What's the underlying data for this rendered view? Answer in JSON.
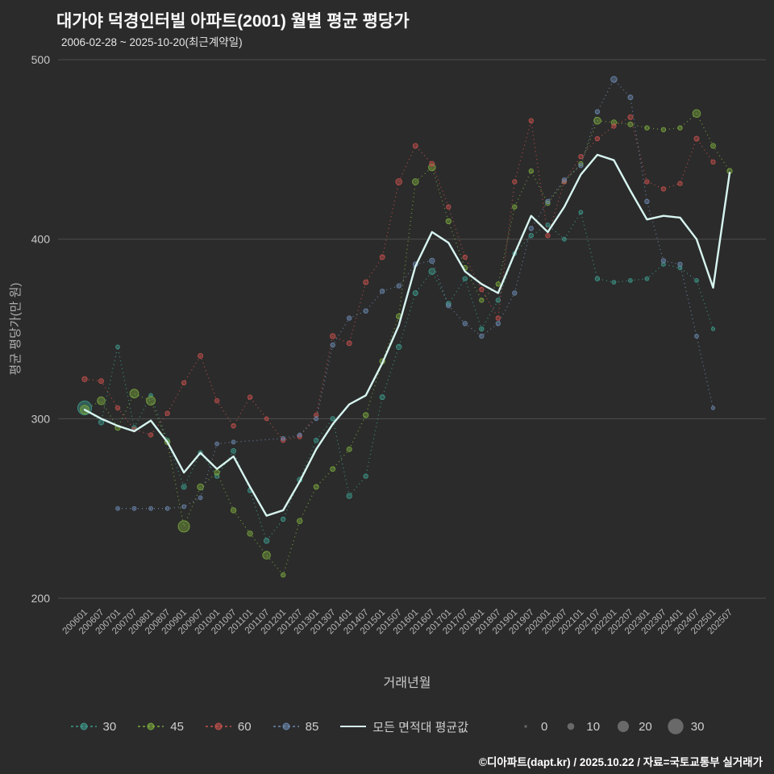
{
  "title": "대가야 덕경인터빌 아파트(2001) 월별 평균 평당가",
  "subtitle": "2006-02-28 ~ 2025-10-20(최근계약일)",
  "footer": "©디아파트(dapt.kr) / 2025.10.22 / 자료=국토교통부 실거래가",
  "colors": {
    "background": "#2b2b2b",
    "gridline": "#4d4d4d",
    "tick_text": "#c9c9c9",
    "axis_title": "#b0b0b0",
    "size_legend_dot": "#7f7f7f"
  },
  "chart_data": {
    "type": "scatter",
    "title": "대가야 덕경인터빌 아파트(2001) 월별 평균 평당가",
    "xlabel": "거래년월",
    "ylabel": "평균 평당가(만 원)",
    "ylim": [
      200,
      500
    ],
    "yticks": [
      200,
      300,
      400,
      500
    ],
    "grid": "horizontal-only",
    "legend_position": "bottom",
    "x_ticklabels": [
      "200601",
      "200607",
      "200701",
      "200707",
      "200801",
      "200807",
      "200901",
      "200907",
      "201001",
      "201007",
      "201101",
      "201107",
      "201201",
      "201207",
      "201301",
      "201307",
      "201401",
      "201407",
      "201501",
      "201507",
      "201601",
      "201607",
      "201701",
      "201707",
      "201801",
      "201807",
      "201901",
      "201907",
      "202001",
      "202007",
      "202101",
      "202107",
      "202201",
      "202207",
      "202301",
      "202307",
      "202401",
      "202407",
      "202501",
      "202507"
    ],
    "point_format": "[x_tick_index, avg_price_per_pyeong, transaction_count]",
    "series": [
      {
        "name": "30",
        "color": "#3d9a8b",
        "kind": "scatter",
        "points": [
          [
            0,
            306,
            26
          ],
          [
            1,
            298,
            6
          ],
          [
            2,
            340,
            3
          ],
          [
            3,
            295,
            4
          ],
          [
            4,
            313,
            3
          ],
          [
            5,
            288,
            4
          ],
          [
            6,
            262,
            5
          ],
          [
            7,
            281,
            4
          ],
          [
            8,
            268,
            4
          ],
          [
            9,
            282,
            5
          ],
          [
            10,
            260,
            4
          ],
          [
            11,
            232,
            6
          ],
          [
            12,
            244,
            4
          ],
          [
            13,
            266,
            5
          ],
          [
            14,
            288,
            4
          ],
          [
            15,
            300,
            4
          ],
          [
            16,
            257,
            6
          ],
          [
            17,
            268,
            4
          ],
          [
            18,
            312,
            5
          ],
          [
            19,
            340,
            6
          ],
          [
            20,
            370,
            5
          ],
          [
            21,
            382,
            8
          ],
          [
            22,
            364,
            5
          ],
          [
            23,
            378,
            4
          ],
          [
            24,
            350,
            4
          ],
          [
            25,
            366,
            4
          ],
          [
            26,
            392,
            3
          ],
          [
            27,
            402,
            4
          ],
          [
            28,
            408,
            3
          ],
          [
            29,
            400,
            3
          ],
          [
            30,
            415,
            3
          ],
          [
            31,
            378,
            4
          ],
          [
            32,
            376,
            3
          ],
          [
            33,
            377,
            3
          ],
          [
            34,
            378,
            3
          ],
          [
            35,
            386,
            3
          ],
          [
            36,
            384,
            3
          ],
          [
            37,
            377,
            3
          ],
          [
            38,
            350,
            2
          ]
        ]
      },
      {
        "name": "45",
        "color": "#7aa73e",
        "kind": "scatter",
        "points": [
          [
            0,
            305,
            14
          ],
          [
            1,
            310,
            12
          ],
          [
            2,
            295,
            6
          ],
          [
            3,
            314,
            14
          ],
          [
            4,
            310,
            14
          ],
          [
            5,
            287,
            6
          ],
          [
            6,
            240,
            20
          ],
          [
            7,
            262,
            8
          ],
          [
            8,
            270,
            6
          ],
          [
            9,
            249,
            6
          ],
          [
            10,
            236,
            6
          ],
          [
            11,
            224,
            12
          ],
          [
            12,
            213,
            4
          ],
          [
            13,
            243,
            6
          ],
          [
            14,
            262,
            5
          ],
          [
            15,
            272,
            5
          ],
          [
            16,
            283,
            5
          ],
          [
            17,
            302,
            6
          ],
          [
            18,
            332,
            6
          ],
          [
            19,
            357,
            6
          ],
          [
            20,
            432,
            8
          ],
          [
            21,
            440,
            10
          ],
          [
            22,
            410,
            6
          ],
          [
            23,
            384,
            5
          ],
          [
            24,
            366,
            4
          ],
          [
            25,
            375,
            4
          ],
          [
            26,
            418,
            4
          ],
          [
            27,
            438,
            4
          ],
          [
            28,
            420,
            4
          ],
          [
            29,
            432,
            4
          ],
          [
            30,
            442,
            4
          ],
          [
            31,
            466,
            10
          ],
          [
            32,
            465,
            6
          ],
          [
            33,
            464,
            5
          ],
          [
            34,
            462,
            4
          ],
          [
            35,
            461,
            4
          ],
          [
            36,
            462,
            4
          ],
          [
            37,
            470,
            12
          ],
          [
            38,
            452,
            5
          ],
          [
            39,
            438,
            6
          ]
        ]
      },
      {
        "name": "60",
        "color": "#c4504c",
        "kind": "scatter",
        "points": [
          [
            0,
            322,
            6
          ],
          [
            1,
            321,
            5
          ],
          [
            2,
            306,
            4
          ],
          [
            3,
            294,
            4
          ],
          [
            4,
            291,
            4
          ],
          [
            5,
            303,
            4
          ],
          [
            6,
            320,
            4
          ],
          [
            7,
            335,
            5
          ],
          [
            8,
            310,
            4
          ],
          [
            9,
            296,
            4
          ],
          [
            10,
            312,
            4
          ],
          [
            11,
            300,
            3
          ],
          [
            12,
            288,
            4
          ],
          [
            13,
            290,
            4
          ],
          [
            14,
            302,
            4
          ],
          [
            15,
            346,
            6
          ],
          [
            16,
            342,
            5
          ],
          [
            17,
            376,
            5
          ],
          [
            18,
            390,
            5
          ],
          [
            19,
            432,
            8
          ],
          [
            20,
            452,
            5
          ],
          [
            21,
            442,
            5
          ],
          [
            22,
            418,
            4
          ],
          [
            23,
            390,
            4
          ],
          [
            24,
            372,
            4
          ],
          [
            25,
            356,
            4
          ],
          [
            26,
            432,
            4
          ],
          [
            27,
            466,
            4
          ],
          [
            28,
            402,
            4
          ],
          [
            29,
            432,
            4
          ],
          [
            30,
            446,
            4
          ],
          [
            31,
            456,
            4
          ],
          [
            32,
            463,
            4
          ],
          [
            33,
            468,
            5
          ],
          [
            34,
            432,
            4
          ],
          [
            35,
            428,
            4
          ],
          [
            36,
            431,
            4
          ],
          [
            37,
            456,
            5
          ],
          [
            38,
            443,
            4
          ]
        ]
      },
      {
        "name": "85",
        "color": "#6b87ae",
        "kind": "scatter",
        "points": [
          [
            2,
            250,
            3
          ],
          [
            3,
            250,
            3
          ],
          [
            4,
            250,
            3
          ],
          [
            5,
            250,
            3
          ],
          [
            6,
            251,
            3
          ],
          [
            7,
            256,
            3
          ],
          [
            8,
            286,
            3
          ],
          [
            9,
            287,
            3
          ],
          [
            12,
            289,
            3
          ],
          [
            13,
            291,
            3
          ],
          [
            14,
            300,
            3
          ],
          [
            15,
            341,
            4
          ],
          [
            16,
            356,
            4
          ],
          [
            17,
            360,
            4
          ],
          [
            18,
            371,
            4
          ],
          [
            19,
            374,
            4
          ],
          [
            20,
            386,
            5
          ],
          [
            21,
            388,
            6
          ],
          [
            22,
            363,
            4
          ],
          [
            23,
            353,
            4
          ],
          [
            24,
            346,
            4
          ],
          [
            25,
            353,
            4
          ],
          [
            26,
            370,
            4
          ],
          [
            27,
            406,
            4
          ],
          [
            28,
            421,
            4
          ],
          [
            29,
            433,
            4
          ],
          [
            30,
            441,
            4
          ],
          [
            31,
            471,
            4
          ],
          [
            32,
            489,
            8
          ],
          [
            33,
            479,
            5
          ],
          [
            34,
            421,
            4
          ],
          [
            35,
            388,
            4
          ],
          [
            36,
            386,
            4
          ],
          [
            37,
            346,
            3
          ],
          [
            38,
            306,
            2
          ]
        ]
      },
      {
        "name": "모든 면적대 평균값",
        "color": "#d7f5f0",
        "kind": "line",
        "points": [
          [
            0,
            305
          ],
          [
            1,
            300
          ],
          [
            2,
            296
          ],
          [
            3,
            293
          ],
          [
            4,
            299
          ],
          [
            5,
            287
          ],
          [
            6,
            270
          ],
          [
            7,
            281
          ],
          [
            8,
            272
          ],
          [
            9,
            279
          ],
          [
            10,
            262
          ],
          [
            11,
            246
          ],
          [
            12,
            249
          ],
          [
            13,
            265
          ],
          [
            14,
            283
          ],
          [
            15,
            297
          ],
          [
            16,
            308
          ],
          [
            17,
            313
          ],
          [
            18,
            331
          ],
          [
            19,
            352
          ],
          [
            20,
            385
          ],
          [
            21,
            404
          ],
          [
            22,
            398
          ],
          [
            23,
            382
          ],
          [
            24,
            375
          ],
          [
            25,
            370
          ],
          [
            26,
            392
          ],
          [
            27,
            413
          ],
          [
            28,
            404
          ],
          [
            29,
            418
          ],
          [
            30,
            436
          ],
          [
            31,
            447
          ],
          [
            32,
            444
          ],
          [
            33,
            427
          ],
          [
            34,
            411
          ],
          [
            35,
            413
          ],
          [
            36,
            412
          ],
          [
            37,
            400
          ],
          [
            38,
            373
          ],
          [
            39,
            437
          ]
        ]
      }
    ],
    "size_legend": [
      0,
      10,
      20,
      30
    ]
  }
}
